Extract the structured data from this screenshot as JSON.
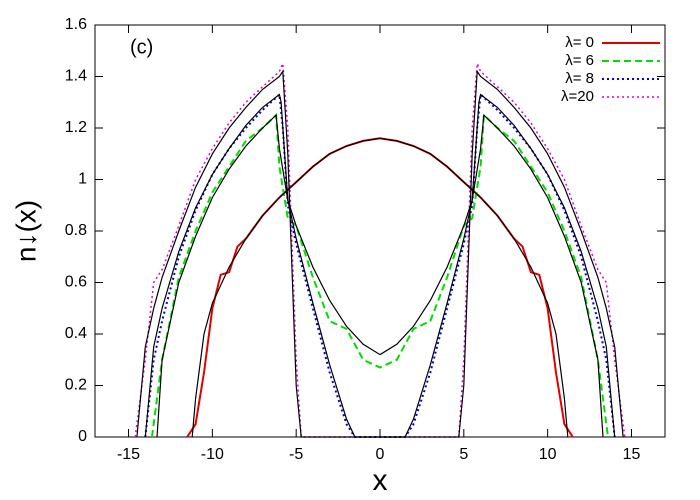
{
  "chart_data": {
    "type": "line",
    "annotation": "(c)",
    "xlabel": "x",
    "ylabel": "n↓(x)",
    "xlim": [
      -17,
      17
    ],
    "ylim": [
      0,
      1.6
    ],
    "xticks": [
      -15,
      -10,
      -5,
      0,
      5,
      10,
      15
    ],
    "yticks": [
      0,
      0.2,
      0.4,
      0.6,
      0.8,
      1,
      1.2,
      1.4,
      1.6
    ],
    "grid": false,
    "legend": "upper right",
    "series": [
      {
        "name": "λ=  0",
        "color": "#e00000",
        "dash": "solid",
        "width": 2,
        "x": [
          -11.5,
          -11,
          -10.5,
          -10,
          -9.5,
          -9,
          -8.5,
          -8,
          -7,
          -6,
          -5,
          -4,
          -3,
          -2,
          -1,
          0,
          1,
          2,
          3,
          4,
          5,
          6,
          7,
          8,
          8.5,
          9,
          9.5,
          10,
          10.5,
          11,
          11.5
        ],
        "values": [
          0,
          0.05,
          0.25,
          0.5,
          0.63,
          0.64,
          0.74,
          0.77,
          0.86,
          0.93,
          0.99,
          1.05,
          1.1,
          1.13,
          1.15,
          1.16,
          1.15,
          1.13,
          1.1,
          1.05,
          0.99,
          0.93,
          0.86,
          0.77,
          0.74,
          0.64,
          0.63,
          0.5,
          0.25,
          0.05,
          0
        ]
      },
      {
        "name": "λ=  6",
        "color": "#00dd00",
        "dash": "dashed",
        "width": 2,
        "x": [
          -13.6,
          -13,
          -12,
          -11,
          -10,
          -9,
          -8,
          -7,
          -6.2,
          -6,
          -5.5,
          -5,
          -4,
          -3,
          -2,
          -1,
          0,
          1,
          2,
          3,
          4,
          5,
          5.5,
          6,
          6.2,
          7,
          8,
          9,
          10,
          11,
          12,
          13,
          13.6
        ],
        "values": [
          0,
          0.3,
          0.62,
          0.8,
          0.95,
          1.05,
          1.15,
          1.2,
          1.25,
          1.05,
          0.85,
          0.82,
          0.62,
          0.45,
          0.42,
          0.3,
          0.27,
          0.3,
          0.42,
          0.45,
          0.62,
          0.82,
          0.85,
          1.05,
          1.25,
          1.2,
          1.15,
          1.05,
          0.95,
          0.8,
          0.62,
          0.3,
          0
        ]
      },
      {
        "name": "λ=  8",
        "color": "#0000dd",
        "dash": "dotted",
        "width": 2,
        "x": [
          -14,
          -13.5,
          -13,
          -12,
          -11,
          -10,
          -9,
          -8,
          -7,
          -6,
          -5.8,
          -5.5,
          -5,
          -4,
          -3,
          -2,
          -1.5,
          0,
          1.5,
          2,
          3,
          4,
          5,
          5.5,
          5.8,
          6,
          7,
          8,
          9,
          10,
          11,
          12,
          13,
          13.5,
          14
        ],
        "values": [
          0,
          0.3,
          0.45,
          0.7,
          0.88,
          1.02,
          1.12,
          1.2,
          1.27,
          1.33,
          1.2,
          0.9,
          0.75,
          0.5,
          0.25,
          0.05,
          0,
          0,
          0,
          0.05,
          0.25,
          0.5,
          0.75,
          0.9,
          1.2,
          1.33,
          1.27,
          1.2,
          1.12,
          1.02,
          0.88,
          0.7,
          0.45,
          0.3,
          0
        ]
      },
      {
        "name": "λ=20",
        "color": "#dd00dd",
        "dash": "dotted",
        "width": 1.5,
        "x": [
          -14.6,
          -14,
          -13.5,
          -13,
          -12,
          -11,
          -10,
          -9,
          -8,
          -7,
          -6,
          -5.8,
          -5.5,
          -5,
          -4.7,
          0,
          4.7,
          5,
          5.5,
          5.8,
          6,
          7,
          8,
          9,
          10,
          11,
          12,
          13,
          13.5,
          14,
          14.6
        ],
        "values": [
          0,
          0.3,
          0.6,
          0.65,
          0.82,
          1,
          1.12,
          1.22,
          1.3,
          1.36,
          1.42,
          1.45,
          1.2,
          0.3,
          0,
          0,
          0,
          0.3,
          1.2,
          1.45,
          1.42,
          1.36,
          1.3,
          1.22,
          1.12,
          1,
          0.82,
          0.65,
          0.6,
          0.3,
          0
        ]
      },
      {
        "color": "#000000",
        "dash": "solid",
        "width": 1.2,
        "x": [
          -11.2,
          -11,
          -10.5,
          -10,
          -9,
          -8,
          -7,
          -6,
          -5,
          -4,
          -3,
          -2,
          -1,
          0,
          1,
          2,
          3,
          4,
          5,
          6,
          7,
          8,
          9,
          10,
          10.5,
          11,
          11.2
        ],
        "values": [
          0,
          0.15,
          0.4,
          0.52,
          0.66,
          0.77,
          0.86,
          0.93,
          0.99,
          1.05,
          1.1,
          1.13,
          1.15,
          1.16,
          1.15,
          1.13,
          1.1,
          1.05,
          0.99,
          0.93,
          0.86,
          0.77,
          0.66,
          0.52,
          0.4,
          0.15,
          0
        ]
      },
      {
        "color": "#000000",
        "dash": "solid",
        "width": 1.2,
        "x": [
          -13.3,
          -13,
          -12,
          -11,
          -10,
          -9,
          -8,
          -7,
          -6.2,
          -6,
          -5.5,
          -5,
          -4,
          -3,
          -2,
          -1,
          0,
          1,
          2,
          3,
          4,
          5,
          5.5,
          6,
          6.2,
          7,
          8,
          9,
          10,
          11,
          12,
          13,
          13.3
        ],
        "values": [
          0,
          0.3,
          0.6,
          0.78,
          0.93,
          1.04,
          1.13,
          1.2,
          1.25,
          1.12,
          0.92,
          0.82,
          0.66,
          0.53,
          0.43,
          0.36,
          0.32,
          0.36,
          0.43,
          0.53,
          0.66,
          0.82,
          0.92,
          1.12,
          1.25,
          1.2,
          1.13,
          1.04,
          0.93,
          0.78,
          0.6,
          0.3,
          0
        ]
      },
      {
        "color": "#000000",
        "dash": "solid",
        "width": 1.2,
        "x": [
          -14,
          -13.5,
          -13,
          -12,
          -11,
          -10,
          -9,
          -8,
          -7,
          -6,
          -5.9,
          -5.5,
          -5,
          -4,
          -3,
          -2,
          -1.5,
          0,
          1.5,
          2,
          3,
          4,
          5,
          5.5,
          5.9,
          6,
          7,
          8,
          9,
          10,
          11,
          12,
          13,
          13.5,
          14
        ],
        "values": [
          0,
          0.35,
          0.5,
          0.72,
          0.89,
          1.02,
          1.12,
          1.21,
          1.28,
          1.33,
          1.3,
          0.92,
          0.77,
          0.52,
          0.28,
          0.07,
          0,
          0,
          0,
          0.07,
          0.28,
          0.52,
          0.77,
          0.92,
          1.3,
          1.33,
          1.28,
          1.21,
          1.12,
          1.02,
          0.89,
          0.72,
          0.5,
          0.35,
          0
        ]
      },
      {
        "color": "#000000",
        "dash": "solid",
        "width": 1.2,
        "x": [
          -14.5,
          -14,
          -13.5,
          -13,
          -12,
          -11,
          -10,
          -9,
          -8,
          -7,
          -6,
          -5.8,
          -5.5,
          -5,
          -4.7,
          0,
          4.7,
          5,
          5.5,
          5.8,
          6,
          7,
          8,
          9,
          10,
          11,
          12,
          13,
          13.5,
          14,
          14.5
        ],
        "values": [
          0,
          0.35,
          0.5,
          0.62,
          0.8,
          0.97,
          1.1,
          1.2,
          1.28,
          1.35,
          1.4,
          1.42,
          1.1,
          0.2,
          0,
          0,
          0,
          0.2,
          1.1,
          1.42,
          1.4,
          1.35,
          1.28,
          1.2,
          1.1,
          0.97,
          0.8,
          0.62,
          0.5,
          0.35,
          0
        ]
      }
    ]
  }
}
